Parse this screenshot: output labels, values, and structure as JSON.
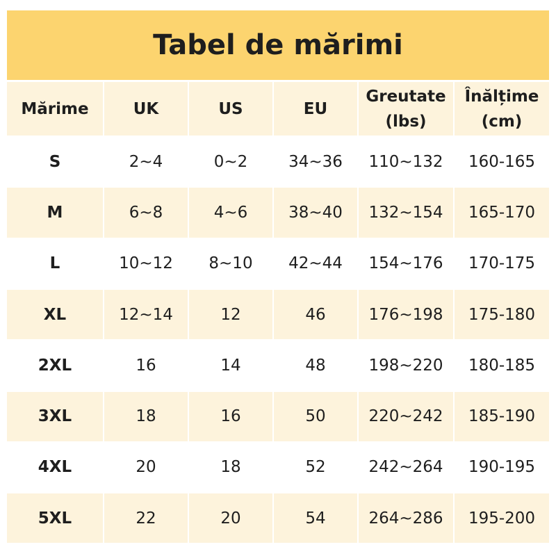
{
  "title": "Tabel de mărimi",
  "table": {
    "header": [
      [
        "Mărime"
      ],
      [
        "UK"
      ],
      [
        "US"
      ],
      [
        "EU"
      ],
      [
        "Greutate",
        "(lbs)"
      ],
      [
        "Înălțime",
        "(cm)"
      ]
    ],
    "rows": [
      [
        "S",
        "2~4",
        "0~2",
        "34~36",
        "110~132",
        "160-165"
      ],
      [
        "M",
        "6~8",
        "4~6",
        "38~40",
        "132~154",
        "165-170"
      ],
      [
        "L",
        "10~12",
        "8~10",
        "42~44",
        "154~176",
        "170-175"
      ],
      [
        "XL",
        "12~14",
        "12",
        "46",
        "176~198",
        "175-180"
      ],
      [
        "2XL",
        "16",
        "14",
        "48",
        "198~220",
        "180-185"
      ],
      [
        "3XL",
        "18",
        "16",
        "50",
        "220~242",
        "185-190"
      ],
      [
        "4XL",
        "20",
        "18",
        "52",
        "242~264",
        "190-195"
      ],
      [
        "5XL",
        "22",
        "20",
        "54",
        "264~286",
        "195-200"
      ]
    ]
  }
}
